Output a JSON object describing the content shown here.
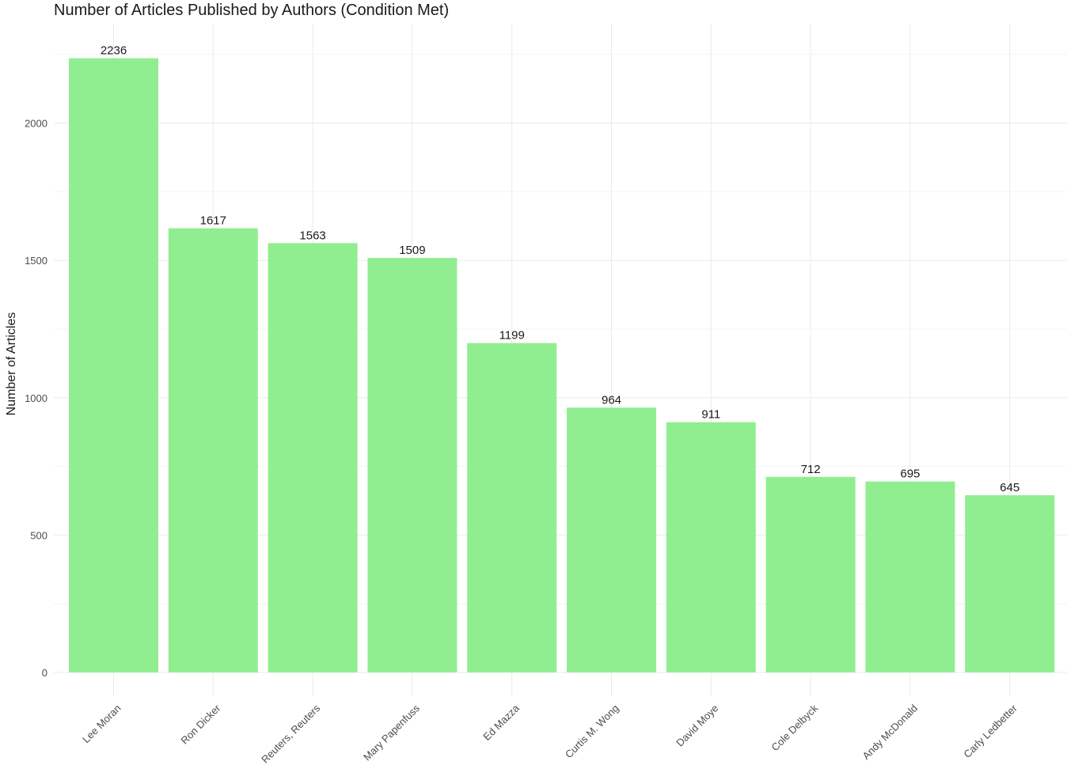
{
  "chart_data": {
    "type": "bar",
    "title": "Number of Articles Published by Authors (Condition Met)",
    "xlabel": "",
    "ylabel": "Number of Articles",
    "categories": [
      "Lee Moran",
      "Ron Dicker",
      "Reuters, Reuters",
      "Mary Papenfuss",
      "Ed Mazza",
      "Curtis M. Wong",
      "David Moye",
      "Cole Delbyck",
      "Andy McDonald",
      "Carly Ledbetter"
    ],
    "values": [
      2236,
      1617,
      1563,
      1509,
      1199,
      964,
      911,
      712,
      695,
      645
    ],
    "ylim": [
      0,
      2350
    ],
    "yticks": [
      0,
      500,
      1000,
      1500,
      2000
    ],
    "grid": true,
    "legend": "none",
    "bar_color": "#90ee90",
    "grid_color": "#ebebeb"
  }
}
